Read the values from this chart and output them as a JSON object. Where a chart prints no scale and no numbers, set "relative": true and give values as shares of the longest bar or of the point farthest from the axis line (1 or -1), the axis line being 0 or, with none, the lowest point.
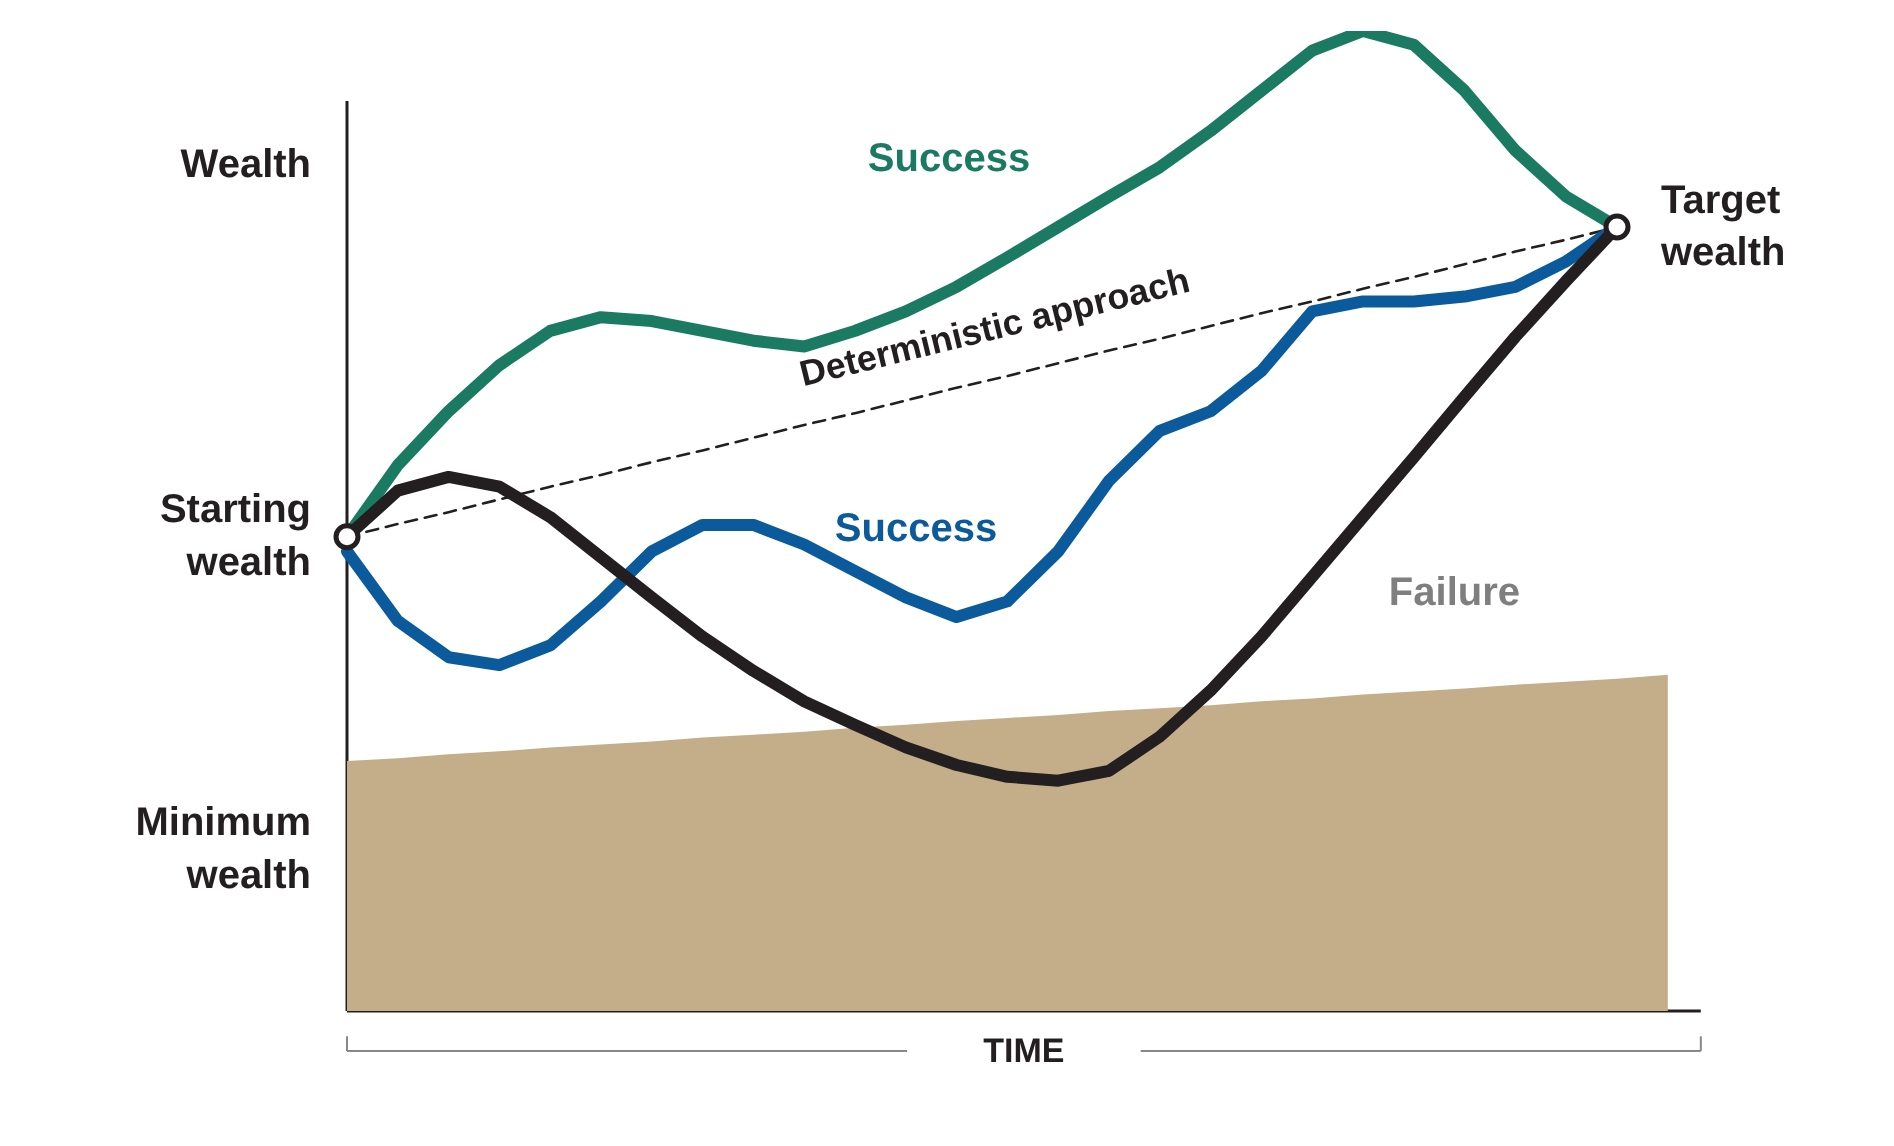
{
  "chart_data": {
    "type": "line",
    "relative": true,
    "ylabel": "Wealth",
    "xlabel": "TIME",
    "categories": [
      null,
      null,
      null,
      null,
      null,
      null,
      null,
      null,
      null,
      null,
      null,
      null,
      null,
      null,
      null,
      null,
      null,
      null,
      null,
      null,
      null,
      null,
      null,
      null,
      null,
      null,
      null
    ],
    "series": [
      {
        "type": "area",
        "color": "#c4ae8a",
        "values": [
          0.255,
          0.258,
          0.262,
          0.265,
          0.269,
          0.272,
          0.275,
          0.279,
          0.282,
          0.285,
          0.289,
          0.292,
          0.296,
          0.299,
          0.302,
          0.306,
          0.309,
          0.312,
          0.316,
          0.319,
          0.323,
          0.326,
          0.329,
          0.333,
          0.336,
          0.339,
          0.343
        ]
      },
      {
        "name": "Deterministic approach",
        "color": "#231f20",
        "line_style": "dashed",
        "values": [
          0.484,
          0.497,
          0.509,
          0.522,
          0.535,
          0.547,
          0.56,
          0.572,
          0.585,
          0.598,
          0.61,
          0.623,
          0.636,
          0.648,
          0.661,
          0.674,
          0.686,
          0.699,
          0.712,
          0.724,
          0.737,
          0.749,
          0.762,
          0.775,
          0.787,
          0.8,
          null
        ]
      },
      {
        "name": "Success",
        "color": "#1a7a62",
        "values": [
          0.484,
          0.557,
          0.612,
          0.659,
          0.694,
          0.708,
          0.704,
          0.694,
          0.684,
          0.678,
          0.694,
          0.714,
          0.739,
          0.769,
          0.8,
          0.831,
          0.861,
          0.898,
          0.939,
          0.98,
          1.0,
          0.986,
          0.939,
          0.878,
          0.831,
          0.8,
          null
        ]
      },
      {
        "name": "Success",
        "color": "#0a5a9c",
        "values": [
          0.469,
          0.398,
          0.361,
          0.353,
          0.373,
          0.418,
          0.469,
          0.496,
          0.496,
          0.476,
          0.449,
          0.422,
          0.402,
          0.418,
          0.469,
          0.541,
          0.592,
          0.612,
          0.653,
          0.714,
          0.724,
          0.724,
          0.729,
          0.739,
          0.765,
          0.8,
          null
        ]
      },
      {
        "name": "Failure",
        "color": "#231f20",
        "values": [
          0.484,
          0.531,
          0.545,
          0.535,
          0.504,
          0.463,
          0.422,
          0.382,
          0.347,
          0.316,
          0.292,
          0.269,
          0.251,
          0.239,
          0.235,
          0.245,
          0.28,
          0.327,
          0.382,
          0.443,
          0.504,
          0.565,
          0.627,
          0.688,
          0.745,
          0.8,
          null
        ]
      }
    ],
    "annotations": [
      "Starting wealth",
      "Target wealth",
      "Minimum wealth"
    ],
    "legend": false,
    "grid": false
  }
}
